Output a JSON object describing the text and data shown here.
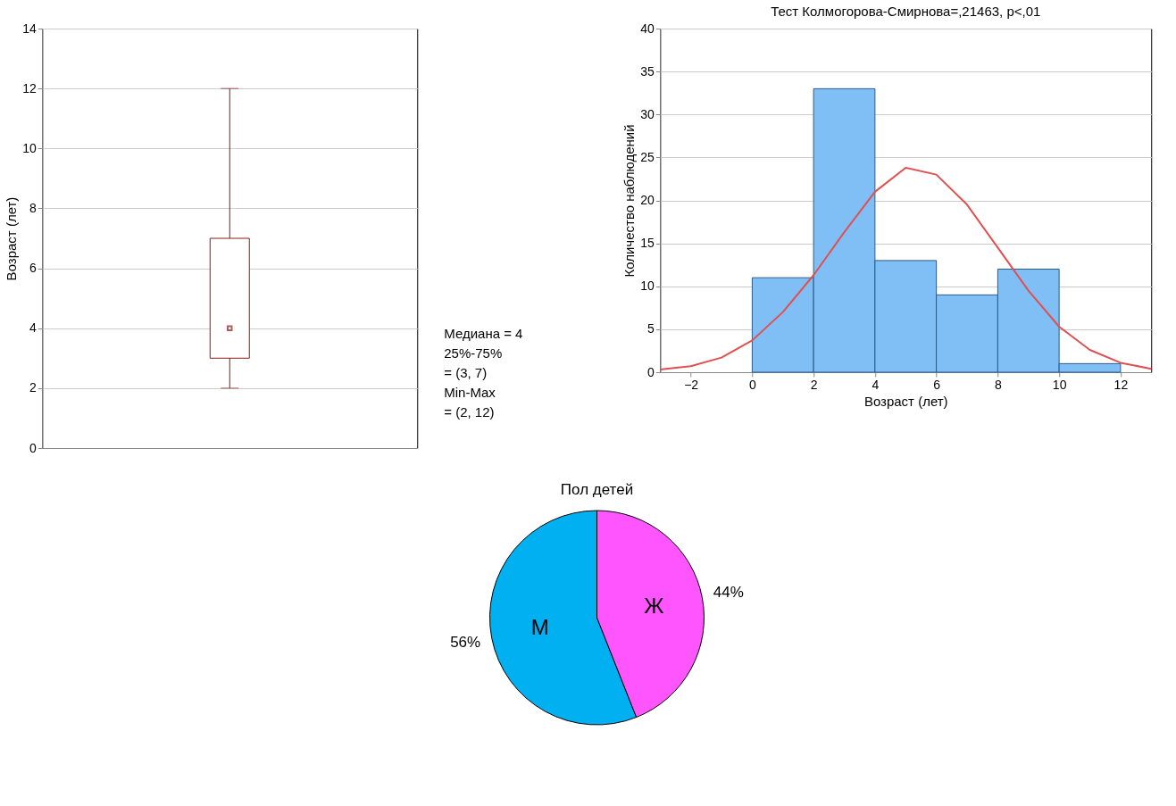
{
  "chart_data": [
    {
      "type": "box",
      "ylabel": "Возраст (лет)",
      "categories": [
        null
      ],
      "boxes": [
        {
          "low": 2,
          "q1": 3,
          "median": 4,
          "q3": 7,
          "high": 12
        }
      ],
      "color": "#8b1a1a",
      "ylim": [
        0,
        14
      ],
      "yticks": [
        0,
        2,
        4,
        6,
        8,
        10,
        12,
        14
      ],
      "grid": "y",
      "tick_labels": "y",
      "annotations": [
        "Медиана = 4",
        "25%-75%",
        "= (3, 7)",
        "Min-Max",
        "= (2, 12)"
      ]
    },
    {
      "type": "histogram",
      "title": "Тест Колмогорова-Смирнова=,21463, p<,01",
      "xlabel": "Возраст (лет)",
      "ylabel": "Количество наблюдений",
      "bins": [
        0,
        2,
        4,
        6,
        8,
        10,
        12
      ],
      "values": [
        11,
        33,
        13,
        9,
        12,
        1
      ],
      "color": "#7fbff5",
      "series": [
        {
          "type": "line",
          "color": "#e05050",
          "x": [
            -3,
            -2,
            -1,
            0,
            1,
            2,
            3,
            4,
            5,
            6,
            7,
            8,
            9,
            10,
            11,
            12,
            13
          ],
          "values": [
            0.3,
            0.7,
            1.7,
            3.7,
            7,
            11.3,
            16.3,
            21,
            23.8,
            23,
            19.5,
            14.5,
            9.5,
            5.3,
            2.6,
            1.1,
            0.4
          ]
        }
      ],
      "xlim": [
        -3,
        13
      ],
      "xticks": [
        -2,
        0,
        2,
        4,
        6,
        8,
        10,
        12
      ],
      "ylim": [
        0,
        40
      ],
      "yticks": [
        0,
        5,
        10,
        15,
        20,
        25,
        30,
        35,
        40
      ],
      "grid": "y"
    },
    {
      "type": "pie",
      "title": "Пол детей",
      "categories": [
        "М",
        "Ж"
      ],
      "values": [
        56,
        44
      ],
      "colors": [
        "#00b0f0",
        "#ff55ff"
      ],
      "value_labels": [
        "56%",
        "44%"
      ]
    }
  ]
}
